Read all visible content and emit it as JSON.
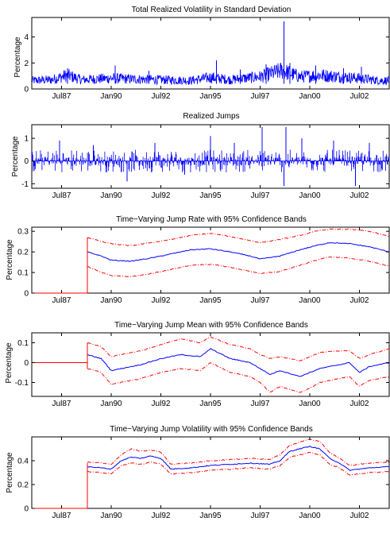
{
  "figure": {
    "panels_count": 5
  },
  "chart_data": [
    {
      "type": "line",
      "title": "Total Realized Volatility in Standard Deviation",
      "ylabel": "Percentage",
      "xlabel": "",
      "x_ticks": [
        "Jul87",
        "Jan90",
        "Jul92",
        "Jan95",
        "Jul97",
        "Jan00",
        "Jul02"
      ],
      "x_tick_years": [
        1987.5,
        1990.0,
        1992.5,
        1995.0,
        1997.5,
        2000.0,
        2002.5
      ],
      "xlim": [
        1986.0,
        2004.0
      ],
      "ylim": [
        0,
        5.5
      ],
      "y_ticks": [
        "0",
        "2",
        "4"
      ],
      "y_tick_values": [
        0,
        2,
        4
      ],
      "series": [
        {
          "color": "#0000ff",
          "style": "solid",
          "x": [
            1986.0,
            1987.0,
            1987.8,
            1988.5,
            1990.0,
            1991.0,
            1992.5,
            1994.0,
            1995.0,
            1996.0,
            1997.5,
            1998.6,
            1999.5,
            2000.5,
            2001.5,
            2002.5,
            2003.5,
            2004.0
          ],
          "values": [
            0.55,
            0.6,
            0.9,
            0.6,
            0.7,
            0.65,
            0.6,
            0.55,
            0.75,
            0.6,
            0.8,
            1.2,
            0.8,
            0.9,
            0.8,
            0.7,
            0.55,
            0.55
          ],
          "spikes": [
            [
              1987.8,
              1.6
            ],
            [
              1990.2,
              1.8
            ],
            [
              1991.9,
              1.4
            ],
            [
              1995.3,
              2.2
            ],
            [
              1996.5,
              1.5
            ],
            [
              1997.8,
              1.9
            ],
            [
              1998.7,
              5.2
            ],
            [
              1999.0,
              2.0
            ],
            [
              2000.3,
              1.8
            ],
            [
              2001.7,
              1.6
            ],
            [
              2002.6,
              1.7
            ]
          ]
        }
      ]
    },
    {
      "type": "line",
      "title": "Realized Jumps",
      "ylabel": "Percentage",
      "xlabel": "",
      "x_ticks": [
        "Jul87",
        "Jan90",
        "Jul92",
        "Jan95",
        "Jul97",
        "Jan00",
        "Jul02"
      ],
      "x_tick_years": [
        1987.5,
        1990.0,
        1992.5,
        1995.0,
        1997.5,
        2000.0,
        2002.5
      ],
      "xlim": [
        1986.0,
        2004.0
      ],
      "ylim": [
        -1.2,
        1.6
      ],
      "y_ticks": [
        "-1",
        "0",
        "1"
      ],
      "y_tick_values": [
        -1,
        0,
        1
      ],
      "series": [
        {
          "color": "#0000ff",
          "style": "solid",
          "typical_amplitude": 0.5,
          "spikes": [
            [
              1987.4,
              0.9
            ],
            [
              1989.1,
              0.7
            ],
            [
              1990.8,
              -0.9
            ],
            [
              1992.2,
              0.8
            ],
            [
              1993.7,
              -0.6
            ],
            [
              1995.0,
              1.1
            ],
            [
              1996.2,
              0.8
            ],
            [
              1997.6,
              1.5
            ],
            [
              1998.7,
              -1.1
            ],
            [
              1998.8,
              1.5
            ],
            [
              1999.6,
              1.0
            ],
            [
              2001.2,
              0.9
            ],
            [
              2002.3,
              -1.1
            ],
            [
              2003.0,
              0.8
            ]
          ]
        }
      ]
    },
    {
      "type": "line",
      "title": "Time−Varying Jump Rate with 95% Confidence Bands",
      "ylabel": "Percentage",
      "xlabel": "",
      "x_ticks": [
        "Jul87",
        "Jan90",
        "Jul92",
        "Jan95",
        "Jul97",
        "Jan00",
        "Jul02"
      ],
      "x_tick_years": [
        1987.5,
        1990.0,
        1992.5,
        1995.0,
        1997.5,
        2000.0,
        2002.5
      ],
      "xlim": [
        1986.0,
        2004.0
      ],
      "ylim": [
        0,
        0.32
      ],
      "y_ticks": [
        "0",
        "0.1",
        "0.2",
        "0.3"
      ],
      "y_tick_values": [
        0,
        0.1,
        0.2,
        0.3
      ],
      "series": [
        {
          "color": "#0000ff",
          "style": "solid",
          "x": [
            1988.8,
            1989.5,
            1990.0,
            1991.0,
            1992.0,
            1993.0,
            1994.0,
            1995.0,
            1996.0,
            1997.0,
            1997.5,
            1998.5,
            1999.5,
            2000.5,
            2001.0,
            2002.0,
            2003.0,
            2004.0
          ],
          "values": [
            0.2,
            0.18,
            0.16,
            0.155,
            0.17,
            0.19,
            0.21,
            0.215,
            0.2,
            0.18,
            0.165,
            0.18,
            0.21,
            0.235,
            0.245,
            0.24,
            0.225,
            0.2
          ]
        },
        {
          "color": "#ff0000",
          "style": "dashed",
          "x": [
            1988.8,
            1989.5,
            1990.0,
            1991.0,
            1992.0,
            1993.0,
            1994.0,
            1995.0,
            1996.0,
            1997.0,
            1997.5,
            1998.5,
            1999.5,
            2000.5,
            2001.0,
            2002.0,
            2003.0,
            2004.0
          ],
          "values": [
            0.27,
            0.25,
            0.24,
            0.23,
            0.245,
            0.26,
            0.28,
            0.29,
            0.275,
            0.255,
            0.245,
            0.26,
            0.28,
            0.305,
            0.31,
            0.31,
            0.3,
            0.275
          ]
        },
        {
          "color": "#ff0000",
          "style": "dashed",
          "x": [
            1988.8,
            1989.5,
            1990.0,
            1991.0,
            1992.0,
            1993.0,
            1994.0,
            1995.0,
            1996.0,
            1997.0,
            1997.5,
            1998.5,
            1999.5,
            2000.5,
            2001.0,
            2002.0,
            2003.0,
            2004.0
          ],
          "values": [
            0.13,
            0.1,
            0.085,
            0.08,
            0.095,
            0.115,
            0.135,
            0.14,
            0.125,
            0.105,
            0.095,
            0.105,
            0.135,
            0.165,
            0.175,
            0.17,
            0.155,
            0.13
          ]
        },
        {
          "color": "#ff0000",
          "style": "solid",
          "x": [
            1986.0,
            1988.8
          ],
          "values": [
            0,
            0
          ]
        },
        {
          "color": "#ff0000",
          "style": "solid",
          "vline": 1988.8,
          "values": [
            0,
            0.27
          ]
        }
      ]
    },
    {
      "type": "line",
      "title": "Time−Varying Jump Mean with 95% Confidence Bands",
      "ylabel": "Percentage",
      "xlabel": "",
      "x_ticks": [
        "Jul87",
        "Jan90",
        "Jul92",
        "Jan95",
        "Jul97",
        "Jan00",
        "Jul02"
      ],
      "x_tick_years": [
        1987.5,
        1990.0,
        1992.5,
        1995.0,
        1997.5,
        2000.0,
        2002.5
      ],
      "xlim": [
        1986.0,
        2004.0
      ],
      "ylim": [
        -0.17,
        0.15
      ],
      "y_ticks": [
        "-0.1",
        "0",
        "0.1"
      ],
      "y_tick_values": [
        -0.1,
        0,
        0.1
      ],
      "series": [
        {
          "color": "#0000ff",
          "style": "solid",
          "x": [
            1988.8,
            1989.5,
            1990.0,
            1990.5,
            1991.5,
            1992.5,
            1993.5,
            1994.5,
            1995.0,
            1996.0,
            1997.0,
            1997.5,
            1998.0,
            1998.5,
            1999.5,
            2000.0,
            2000.5,
            2001.5,
            2002.0,
            2002.5,
            2003.0,
            2004.0
          ],
          "values": [
            0.04,
            0.02,
            -0.04,
            -0.03,
            -0.01,
            0.02,
            0.04,
            0.03,
            0.07,
            0.02,
            0.0,
            -0.03,
            -0.06,
            -0.04,
            -0.07,
            -0.05,
            -0.03,
            -0.01,
            0.0,
            -0.05,
            -0.02,
            0.0
          ]
        },
        {
          "color": "#ff0000",
          "style": "dashed",
          "x": [
            1988.8,
            1989.5,
            1990.0,
            1990.5,
            1991.5,
            1992.5,
            1993.5,
            1994.5,
            1995.0,
            1996.0,
            1997.0,
            1997.5,
            1998.0,
            1998.5,
            1999.5,
            2000.0,
            2000.5,
            2001.5,
            2002.0,
            2002.5,
            2003.0,
            2004.0
          ],
          "values": [
            0.1,
            0.08,
            0.03,
            0.04,
            0.06,
            0.09,
            0.12,
            0.1,
            0.13,
            0.09,
            0.07,
            0.04,
            0.02,
            0.03,
            0.01,
            0.03,
            0.05,
            0.06,
            0.06,
            0.02,
            0.04,
            0.07
          ]
        },
        {
          "color": "#ff0000",
          "style": "dashed",
          "x": [
            1988.8,
            1989.5,
            1990.0,
            1990.5,
            1991.5,
            1992.5,
            1993.5,
            1994.5,
            1995.0,
            1996.0,
            1997.0,
            1997.5,
            1998.0,
            1998.5,
            1999.5,
            2000.0,
            2000.5,
            2001.5,
            2002.0,
            2002.5,
            2003.0,
            2004.0
          ],
          "values": [
            -0.03,
            -0.05,
            -0.11,
            -0.1,
            -0.08,
            -0.05,
            -0.03,
            -0.04,
            0.0,
            -0.05,
            -0.07,
            -0.1,
            -0.15,
            -0.12,
            -0.15,
            -0.13,
            -0.1,
            -0.08,
            -0.07,
            -0.12,
            -0.09,
            -0.07
          ]
        },
        {
          "color": "#ff0000",
          "style": "solid",
          "x": [
            1986.0,
            1988.8
          ],
          "values": [
            0,
            0
          ]
        },
        {
          "color": "#ff0000",
          "style": "solid",
          "vline": 1988.8,
          "values": [
            -0.03,
            0.1
          ]
        }
      ]
    },
    {
      "type": "line",
      "title": "Time−Varying Jump Volatility with 95% Confidence Bands",
      "ylabel": "Percentage",
      "xlabel": "",
      "x_ticks": [
        "Jul87",
        "Jan90",
        "Jul92",
        "Jan95",
        "Jul97",
        "Jan00",
        "Jul02"
      ],
      "x_tick_years": [
        1987.5,
        1990.0,
        1992.5,
        1995.0,
        1997.5,
        2000.0,
        2002.5
      ],
      "xlim": [
        1986.0,
        2004.0
      ],
      "ylim": [
        0,
        0.6
      ],
      "y_ticks": [
        "0",
        "0.2",
        "0.4"
      ],
      "y_tick_values": [
        0,
        0.2,
        0.4
      ],
      "series": [
        {
          "color": "#0000ff",
          "style": "solid",
          "x": [
            1988.8,
            1989.5,
            1990.0,
            1990.5,
            1991.0,
            1991.5,
            1992.0,
            1992.5,
            1993.0,
            1994.0,
            1995.0,
            1996.0,
            1997.0,
            1998.0,
            1998.5,
            1999.0,
            2000.0,
            2000.5,
            2001.0,
            2001.5,
            2002.0,
            2003.0,
            2004.0
          ],
          "values": [
            0.35,
            0.34,
            0.33,
            0.4,
            0.43,
            0.42,
            0.44,
            0.42,
            0.33,
            0.34,
            0.36,
            0.37,
            0.38,
            0.37,
            0.4,
            0.48,
            0.52,
            0.5,
            0.42,
            0.38,
            0.32,
            0.34,
            0.35
          ]
        },
        {
          "color": "#ff0000",
          "style": "dashed",
          "x": [
            1988.8,
            1989.5,
            1990.0,
            1990.5,
            1991.0,
            1991.5,
            1992.0,
            1992.5,
            1993.0,
            1994.0,
            1995.0,
            1996.0,
            1997.0,
            1998.0,
            1998.5,
            1999.0,
            2000.0,
            2000.5,
            2001.0,
            2001.5,
            2002.0,
            2003.0,
            2004.0
          ],
          "values": [
            0.39,
            0.38,
            0.37,
            0.45,
            0.5,
            0.48,
            0.49,
            0.47,
            0.37,
            0.38,
            0.4,
            0.41,
            0.42,
            0.41,
            0.45,
            0.53,
            0.58,
            0.56,
            0.47,
            0.42,
            0.36,
            0.38,
            0.39
          ]
        },
        {
          "color": "#ff0000",
          "style": "dashed",
          "x": [
            1988.8,
            1989.5,
            1990.0,
            1990.5,
            1991.0,
            1991.5,
            1992.0,
            1992.5,
            1993.0,
            1994.0,
            1995.0,
            1996.0,
            1997.0,
            1998.0,
            1998.5,
            1999.0,
            2000.0,
            2000.5,
            2001.0,
            2001.5,
            2002.0,
            2003.0,
            2004.0
          ],
          "values": [
            0.31,
            0.3,
            0.29,
            0.36,
            0.38,
            0.37,
            0.39,
            0.37,
            0.29,
            0.3,
            0.32,
            0.33,
            0.34,
            0.33,
            0.36,
            0.43,
            0.47,
            0.45,
            0.37,
            0.34,
            0.28,
            0.3,
            0.31
          ]
        },
        {
          "color": "#ff0000",
          "style": "solid",
          "x": [
            1986.0,
            1988.8
          ],
          "values": [
            0,
            0
          ]
        },
        {
          "color": "#ff0000",
          "style": "solid",
          "vline": 1988.8,
          "values": [
            0,
            0.38
          ]
        }
      ]
    }
  ]
}
